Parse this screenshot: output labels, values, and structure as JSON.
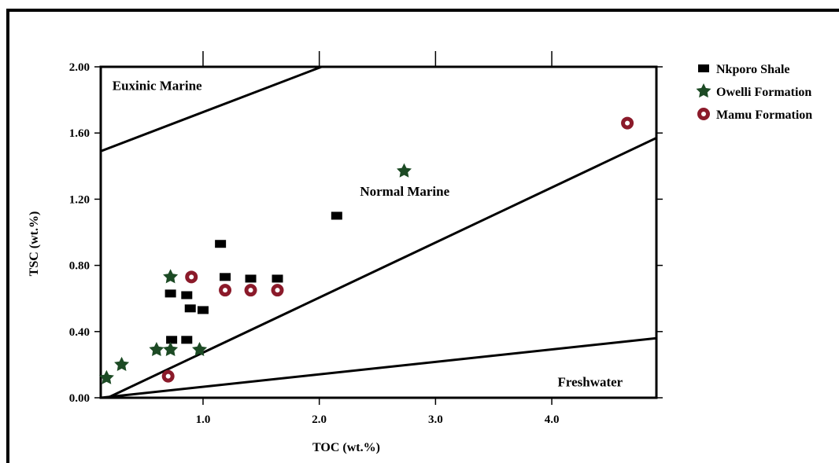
{
  "chart_data": {
    "type": "scatter",
    "xlabel": "TOC (wt.%)",
    "ylabel": "TSC (wt.%)",
    "xlim": [
      0.12,
      4.9
    ],
    "ylim": [
      0,
      2.0
    ],
    "x_ticks": [
      "1.0",
      "2.0",
      "3.0",
      "4.0"
    ],
    "x_tick_values": [
      1.0,
      2.0,
      3.0,
      4.0
    ],
    "y_ticks": [
      "0.00",
      "0.40",
      "0.80",
      "1.20",
      "1.60",
      "2.00"
    ],
    "y_tick_values": [
      0.0,
      0.4,
      0.8,
      1.2,
      1.6,
      2.0
    ],
    "grid": false,
    "legend_placement": "top-right outside",
    "regions": [
      {
        "label": "Euxinic Marine",
        "x": 0.22,
        "y": 1.86
      },
      {
        "label": "Normal Marine",
        "x": 2.35,
        "y": 1.22
      },
      {
        "label": "Freshwater",
        "x": 4.05,
        "y": 0.07
      }
    ],
    "boundary_lines": [
      {
        "name": "euxinic-boundary",
        "x": [
          0.12,
          2.02
        ],
        "y": [
          1.49,
          2.0
        ]
      },
      {
        "name": "normal-marine-boundary",
        "x": [
          0.18,
          4.9
        ],
        "y": [
          0.0,
          1.57
        ]
      },
      {
        "name": "freshwater-boundary",
        "x": [
          0.12,
          4.9
        ],
        "y": [
          0.0,
          0.36
        ]
      }
    ],
    "series": [
      {
        "name": "Nkporo Shale",
        "marker": "square",
        "color": "#000000",
        "points": [
          {
            "x": 0.72,
            "y": 0.63
          },
          {
            "x": 0.86,
            "y": 0.62
          },
          {
            "x": 0.89,
            "y": 0.54
          },
          {
            "x": 1.0,
            "y": 0.53
          },
          {
            "x": 1.15,
            "y": 0.93
          },
          {
            "x": 1.19,
            "y": 0.73
          },
          {
            "x": 1.41,
            "y": 0.72
          },
          {
            "x": 1.64,
            "y": 0.72
          },
          {
            "x": 2.15,
            "y": 1.1
          },
          {
            "x": 0.73,
            "y": 0.35
          },
          {
            "x": 0.86,
            "y": 0.35
          }
        ]
      },
      {
        "name": "Owelli Formation",
        "marker": "star",
        "color": "#1c4a24",
        "points": [
          {
            "x": 0.17,
            "y": 0.12
          },
          {
            "x": 0.3,
            "y": 0.2
          },
          {
            "x": 0.6,
            "y": 0.29
          },
          {
            "x": 0.72,
            "y": 0.29
          },
          {
            "x": 0.72,
            "y": 0.73
          },
          {
            "x": 0.97,
            "y": 0.29
          },
          {
            "x": 2.73,
            "y": 1.37
          }
        ]
      },
      {
        "name": "Mamu Formation",
        "marker": "ring",
        "color": "#8b1a2a",
        "points": [
          {
            "x": 0.9,
            "y": 0.73
          },
          {
            "x": 1.19,
            "y": 0.65
          },
          {
            "x": 1.41,
            "y": 0.65
          },
          {
            "x": 1.64,
            "y": 0.65
          },
          {
            "x": 0.7,
            "y": 0.13
          },
          {
            "x": 4.65,
            "y": 1.66
          }
        ]
      }
    ]
  }
}
